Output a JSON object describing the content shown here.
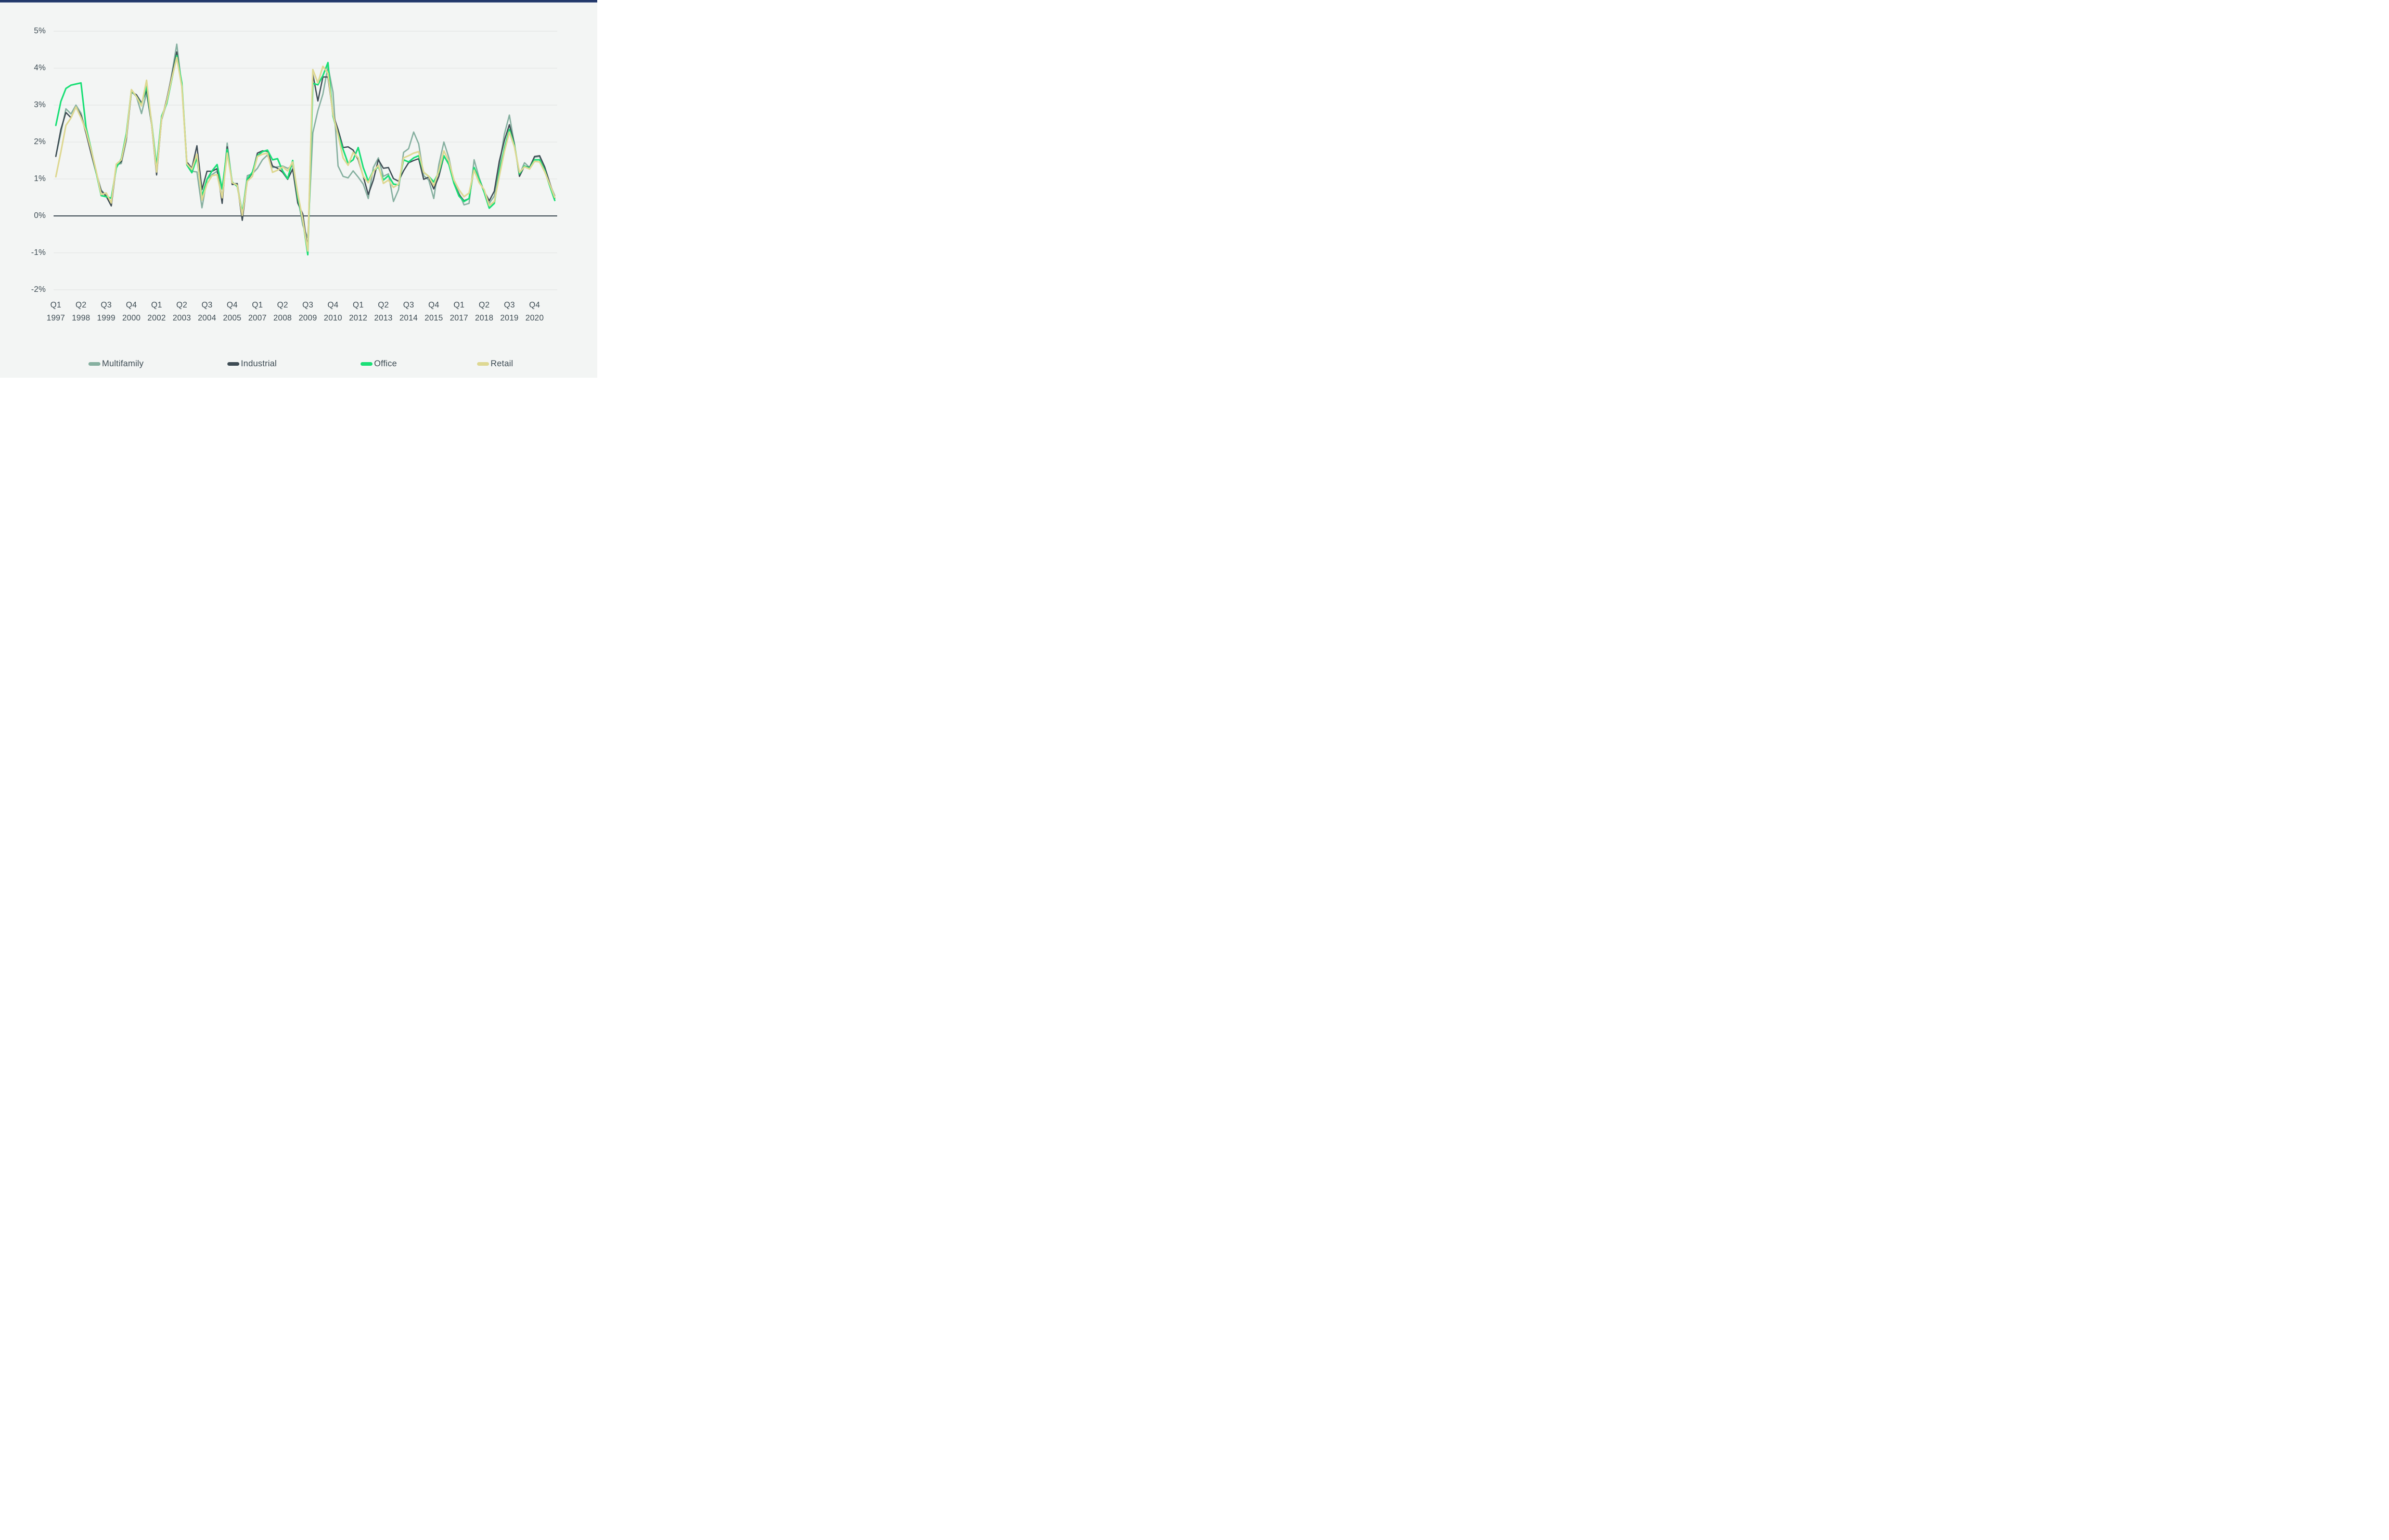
{
  "page": {
    "background_color": "#ffffff",
    "content_background_color": "#f3f5f4",
    "topbar_color": "#22386a",
    "topbar_underline_color": "#61719b",
    "text_color": "#3e4c54",
    "gridline_color": "#e0e3e2",
    "zero_line_color": "#3e4c54"
  },
  "chart_data": {
    "type": "line",
    "title": "",
    "frequency": "quarterly",
    "x_start": "Q1 1997",
    "x_end": "Q4 2021",
    "grid": true,
    "legend_position": "bottom",
    "ylim": [
      -2,
      5
    ],
    "y_ticks": [
      "5%",
      "4%",
      "3%",
      "2%",
      "1%",
      "0%",
      "-1%",
      "-2%"
    ],
    "x_ticks": [
      [
        "Q1",
        "1997"
      ],
      [
        "Q2",
        "1998"
      ],
      [
        "Q3",
        "1999"
      ],
      [
        "Q4",
        "2000"
      ],
      [
        "Q1",
        "2002"
      ],
      [
        "Q2",
        "2003"
      ],
      [
        "Q3",
        "2004"
      ],
      [
        "Q4",
        "2005"
      ],
      [
        "Q1",
        "2007"
      ],
      [
        "Q2",
        "2008"
      ],
      [
        "Q3",
        "2009"
      ],
      [
        "Q4",
        "2010"
      ],
      [
        "Q1",
        "2012"
      ],
      [
        "Q2",
        "2013"
      ],
      [
        "Q3",
        "2014"
      ],
      [
        "Q4",
        "2015"
      ],
      [
        "Q1",
        "2017"
      ],
      [
        "Q2",
        "2018"
      ],
      [
        "Q3",
        "2019"
      ],
      [
        "Q4",
        "2020"
      ]
    ],
    "x_tick_every_n_points": 5,
    "series": [
      {
        "name": "Multifamily",
        "color": "#86b0a0",
        "values": [
          1.62,
          2.25,
          2.9,
          2.76,
          3.0,
          2.78,
          2.28,
          1.73,
          1.19,
          0.7,
          0.55,
          0.38,
          1.38,
          1.42,
          2.05,
          3.37,
          3.23,
          2.77,
          3.33,
          2.48,
          1.24,
          2.6,
          3.06,
          3.83,
          4.65,
          3.5,
          1.39,
          1.21,
          1.19,
          0.22,
          0.99,
          1.12,
          1.21,
          0.51,
          1.97,
          0.87,
          0.88,
          0.07,
          1.09,
          1.14,
          1.29,
          1.52,
          1.65,
          1.31,
          1.33,
          1.35,
          1.29,
          1.35,
          0.5,
          -0.25,
          -0.6,
          2.25,
          2.85,
          3.3,
          4.05,
          3.35,
          1.35,
          1.07,
          1.03,
          1.22,
          1.05,
          0.86,
          0.47,
          1.31,
          1.57,
          1.07,
          1.14,
          0.39,
          0.71,
          1.72,
          1.82,
          2.27,
          1.95,
          1.09,
          0.97,
          0.47,
          1.39,
          2.0,
          1.57,
          0.9,
          0.62,
          0.3,
          0.34,
          1.52,
          1.03,
          0.66,
          0.34,
          0.54,
          1.35,
          2.21,
          2.73,
          1.93,
          1.12,
          1.44,
          1.31,
          1.59,
          1.61,
          1.22,
          0.86,
          0.55
        ]
      },
      {
        "name": "Industrial",
        "color": "#3e4c54",
        "values": [
          1.61,
          2.34,
          2.8,
          2.66,
          2.95,
          2.72,
          2.24,
          1.69,
          1.16,
          0.68,
          0.53,
          0.27,
          1.35,
          1.47,
          2.1,
          3.35,
          3.28,
          3.06,
          3.4,
          2.47,
          1.11,
          2.62,
          3.15,
          3.79,
          4.44,
          3.55,
          1.46,
          1.29,
          1.9,
          0.71,
          1.21,
          1.21,
          1.28,
          0.34,
          1.87,
          0.85,
          0.87,
          -0.12,
          0.97,
          1.16,
          1.7,
          1.76,
          1.75,
          1.35,
          1.29,
          1.18,
          0.99,
          1.27,
          0.35,
          0.05,
          -0.9,
          3.84,
          3.11,
          3.76,
          3.76,
          2.75,
          2.34,
          1.85,
          1.87,
          1.78,
          1.52,
          1.07,
          0.58,
          0.97,
          1.52,
          1.29,
          1.31,
          1.01,
          0.94,
          1.22,
          1.44,
          1.5,
          1.55,
          0.99,
          1.05,
          0.73,
          1.07,
          1.61,
          1.42,
          0.88,
          0.58,
          0.41,
          0.47,
          1.27,
          0.97,
          0.67,
          0.41,
          0.67,
          1.48,
          2.04,
          2.47,
          1.95,
          1.07,
          1.35,
          1.31,
          1.61,
          1.63,
          1.33,
          0.9,
          0.48
        ]
      },
      {
        "name": "Office",
        "color": "#1adf76",
        "values": [
          2.45,
          3.1,
          3.45,
          3.54,
          3.57,
          3.6,
          2.4,
          1.81,
          1.18,
          0.55,
          0.52,
          0.48,
          1.3,
          1.55,
          2.23,
          3.4,
          3.23,
          3.01,
          3.52,
          2.53,
          1.34,
          2.7,
          3.04,
          3.69,
          4.34,
          3.6,
          1.38,
          1.17,
          1.58,
          0.53,
          0.99,
          1.22,
          1.39,
          0.73,
          1.8,
          0.92,
          0.8,
          0.09,
          1.0,
          1.18,
          1.63,
          1.74,
          1.78,
          1.52,
          1.55,
          1.22,
          1.01,
          1.5,
          0.5,
          -0.1,
          -1.05,
          3.59,
          3.55,
          3.8,
          4.15,
          2.7,
          2.21,
          1.8,
          1.42,
          1.52,
          1.85,
          1.31,
          0.94,
          1.22,
          1.33,
          0.97,
          1.09,
          0.86,
          0.84,
          1.52,
          1.46,
          1.57,
          1.63,
          1.18,
          1.07,
          0.92,
          1.18,
          1.63,
          1.39,
          0.88,
          0.54,
          0.39,
          0.47,
          1.31,
          0.99,
          0.64,
          0.21,
          0.34,
          1.18,
          1.82,
          2.34,
          1.91,
          1.14,
          1.35,
          1.29,
          1.52,
          1.52,
          1.24,
          0.82,
          0.42
        ]
      },
      {
        "name": "Retail",
        "color": "#ded892",
        "values": [
          1.06,
          1.73,
          2.45,
          2.65,
          2.95,
          2.66,
          2.3,
          1.79,
          1.22,
          0.58,
          0.62,
          0.35,
          1.4,
          1.52,
          2.15,
          3.42,
          3.23,
          2.98,
          3.67,
          2.5,
          1.19,
          2.64,
          3.1,
          3.72,
          4.29,
          3.5,
          1.41,
          1.26,
          1.67,
          0.43,
          0.87,
          1.09,
          1.12,
          0.49,
          1.7,
          0.9,
          0.83,
          0.02,
          0.94,
          1.07,
          1.61,
          1.67,
          1.7,
          1.18,
          1.24,
          1.33,
          1.22,
          1.46,
          0.6,
          -0.1,
          -0.95,
          3.96,
          3.6,
          4.05,
          3.86,
          2.75,
          2.19,
          1.57,
          1.37,
          1.72,
          1.57,
          1.07,
          0.9,
          1.2,
          1.37,
          0.88,
          0.97,
          0.77,
          0.86,
          1.57,
          1.63,
          1.7,
          1.74,
          1.18,
          1.07,
          0.82,
          1.22,
          1.76,
          1.48,
          0.97,
          0.71,
          0.52,
          0.62,
          1.24,
          0.9,
          0.71,
          0.28,
          0.39,
          1.07,
          1.74,
          2.27,
          1.87,
          1.18,
          1.33,
          1.27,
          1.48,
          1.46,
          1.2,
          0.86,
          0.5
        ]
      }
    ]
  },
  "legend": {
    "items": [
      {
        "label": "Multifamily",
        "color": "#86b0a0"
      },
      {
        "label": "Industrial",
        "color": "#3e4c54"
      },
      {
        "label": "Office",
        "color": "#1adf76"
      },
      {
        "label": "Retail",
        "color": "#ded892"
      }
    ]
  }
}
